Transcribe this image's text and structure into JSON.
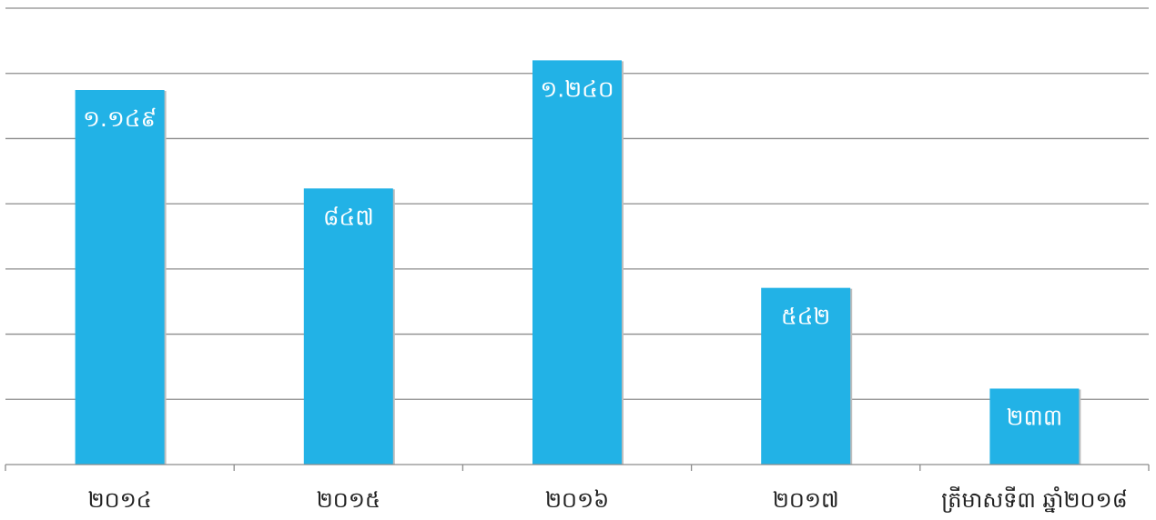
{
  "chart_data": {
    "type": "bar",
    "categories": [
      "២០១៤",
      "២០១៥",
      "២០១៦",
      "២០១៧",
      "ត្រីមាសទី៣ ឆ្នាំ២០១៨"
    ],
    "values": [
      1149,
      847,
      1240,
      542,
      233
    ],
    "value_labels": [
      "១.១៤៩",
      "៨៤៧",
      "១.២៤០",
      "៥៤២",
      "២៣៣"
    ],
    "ylim": [
      0,
      1400
    ],
    "grid": true,
    "legend": "none",
    "bar_color": "#22b2e6"
  }
}
